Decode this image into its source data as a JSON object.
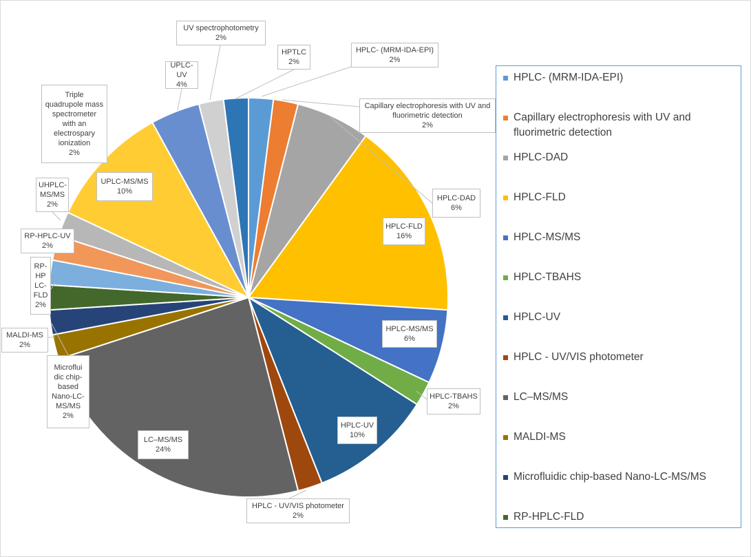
{
  "chart_data": {
    "type": "pie",
    "title": "",
    "legend_position": "right",
    "slices": [
      {
        "name": "HPLC- (MRM-IDA-EPI)",
        "value": 2,
        "label": "2%",
        "color": "#5b9bd5"
      },
      {
        "name": "Capillary electrophoresis with UV and fluorimetric detection",
        "value": 2,
        "label": "2%",
        "color": "#ed7d31"
      },
      {
        "name": "HPLC-DAD",
        "value": 6,
        "label": "6%",
        "color": "#a5a5a5"
      },
      {
        "name": "HPLC-FLD",
        "value": 16,
        "label": "16%",
        "color": "#ffc000"
      },
      {
        "name": "HPLC-MS/MS",
        "value": 6,
        "label": "6%",
        "color": "#4472c4"
      },
      {
        "name": "HPLC-TBAHS",
        "value": 2,
        "label": "2%",
        "color": "#70ad47"
      },
      {
        "name": "HPLC-UV",
        "value": 10,
        "label": "10%",
        "color": "#255e91"
      },
      {
        "name": "HPLC - UV/VIS photometer",
        "value": 2,
        "label": "2%",
        "color": "#9e480e"
      },
      {
        "name": "LC–MS/MS",
        "value": 24,
        "label": "24%",
        "color": "#636363"
      },
      {
        "name": "MALDI-MS",
        "value": 2,
        "label": "2%",
        "color": "#997300"
      },
      {
        "name": "Microfluidic chip-based Nano-LC-MS/MS",
        "value": 2,
        "label": "2%",
        "color": "#264478"
      },
      {
        "name": "RP-HPLC-FLD",
        "value": 2,
        "label": "2%",
        "color": "#43682b"
      },
      {
        "name": "RP-HPLC-UV",
        "value": 2,
        "label": "2%",
        "color": "#7cafdd"
      },
      {
        "name": "Triple quadrupole mass spectrometer with an electrospary ionization",
        "value": 2,
        "label": "2%",
        "color": "#f1975a"
      },
      {
        "name": "UHPLC-MS/MS",
        "value": 2,
        "label": "2%",
        "color": "#b7b7b7"
      },
      {
        "name": "UPLC-MS/MS",
        "value": 10,
        "label": "10%",
        "color": "#ffcd33"
      },
      {
        "name": "UPLC-UV",
        "value": 4,
        "label": "4%",
        "color": "#698ed0"
      },
      {
        "name": "UV spectrophotometry",
        "value": 2,
        "label": "2%",
        "color": "#d0d0d0"
      },
      {
        "name": "HPTLC",
        "value": 2,
        "label": "2%",
        "color": "#2e75b6"
      }
    ]
  },
  "data_labels": [
    {
      "lines": [
        "HPLC- (MRM-IDA-EPI)",
        "2%"
      ]
    },
    {
      "lines": [
        "Capillary electrophoresis with UV and",
        "fluorimetric detection",
        "2%"
      ]
    },
    {
      "lines": [
        "HPLC-DAD",
        "6%"
      ]
    },
    {
      "lines": [
        "HPLC-FLD",
        "16%"
      ]
    },
    {
      "lines": [
        "HPLC-MS/MS",
        "6%"
      ]
    },
    {
      "lines": [
        "HPLC-TBAHS",
        "2%"
      ]
    },
    {
      "lines": [
        "HPLC-UV",
        "10%"
      ]
    },
    {
      "lines": [
        "HPLC - UV/VIS photometer",
        "2%"
      ]
    },
    {
      "lines": [
        "LC–MS/MS",
        "24%"
      ]
    },
    {
      "lines": [
        "MALDI-MS",
        "2%"
      ]
    },
    {
      "lines": [
        "Microflui",
        "dic chip-",
        "based",
        "Nano-LC-",
        "MS/MS",
        "2%"
      ]
    },
    {
      "lines": [
        "RP-",
        "HP",
        "LC-",
        "FLD",
        "2%"
      ]
    },
    {
      "lines": [
        "RP-HPLC-UV",
        "2%"
      ]
    },
    {
      "lines": [
        "Triple",
        "quadrupole mass",
        "spectrometer",
        "with an",
        "electrospary",
        "ionization",
        "2%"
      ]
    },
    {
      "lines": [
        "UHPLC-",
        "MS/MS",
        "2%"
      ]
    },
    {
      "lines": [
        "UPLC-MS/MS",
        "10%"
      ]
    },
    {
      "lines": [
        "UPLC-UV",
        "4%"
      ]
    },
    {
      "lines": [
        "UV spectrophotometry",
        "2%"
      ]
    },
    {
      "lines": [
        "HPTLC",
        "2%"
      ]
    }
  ],
  "legend": {
    "items": [
      {
        "label": "HPLC- (MRM-IDA-EPI)",
        "color": "#5b9bd5"
      },
      {
        "label": "Capillary electrophoresis with UV and fluorimetric detection",
        "color": "#ed7d31"
      },
      {
        "label": "HPLC-DAD",
        "color": "#a5a5a5"
      },
      {
        "label": "HPLC-FLD",
        "color": "#ffc000"
      },
      {
        "label": "HPLC-MS/MS",
        "color": "#4472c4"
      },
      {
        "label": "HPLC-TBAHS",
        "color": "#70ad47"
      },
      {
        "label": "HPLC-UV",
        "color": "#255e91"
      },
      {
        "label": "HPLC - UV/VIS photometer",
        "color": "#9e480e"
      },
      {
        "label": "LC–MS/MS",
        "color": "#636363"
      },
      {
        "label": "MALDI-MS",
        "color": "#997300"
      },
      {
        "label": "Microfluidic chip-based Nano-LC-MS/MS",
        "color": "#264478"
      },
      {
        "label": "RP-HPLC-FLD",
        "color": "#43682b"
      }
    ]
  }
}
